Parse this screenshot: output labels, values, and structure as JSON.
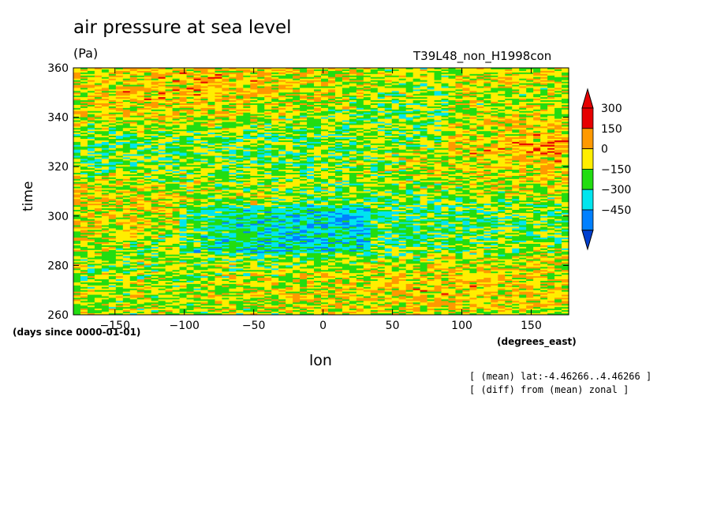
{
  "chart_data": {
    "type": "heatmap",
    "title": "air pressure at sea level",
    "units": "(Pa)",
    "experiment": "T39L48_non_H1998con",
    "xlabel": "lon",
    "xunits": "(degrees_east)",
    "ylabel": "time",
    "yunits": "(days since 0000-01-01)",
    "xlim": [
      -180,
      177
    ],
    "ylim": [
      260,
      360
    ],
    "xticks": [
      -150,
      -100,
      -50,
      0,
      50,
      100,
      150
    ],
    "yticks": [
      260,
      280,
      300,
      320,
      340,
      360
    ],
    "colorbar": {
      "levels": [
        300,
        150,
        0,
        -150,
        -300,
        -450
      ],
      "colors": [
        "#e60000",
        "#ff9900",
        "#ffee00",
        "#22dd11",
        "#00e5ee",
        "#0080ff",
        "#0040d0"
      ]
    },
    "notes": [
      "[ (mean) lat:-4.46266..4.46266 ]",
      "[ (diff) from (mean) zonal ]"
    ]
  }
}
